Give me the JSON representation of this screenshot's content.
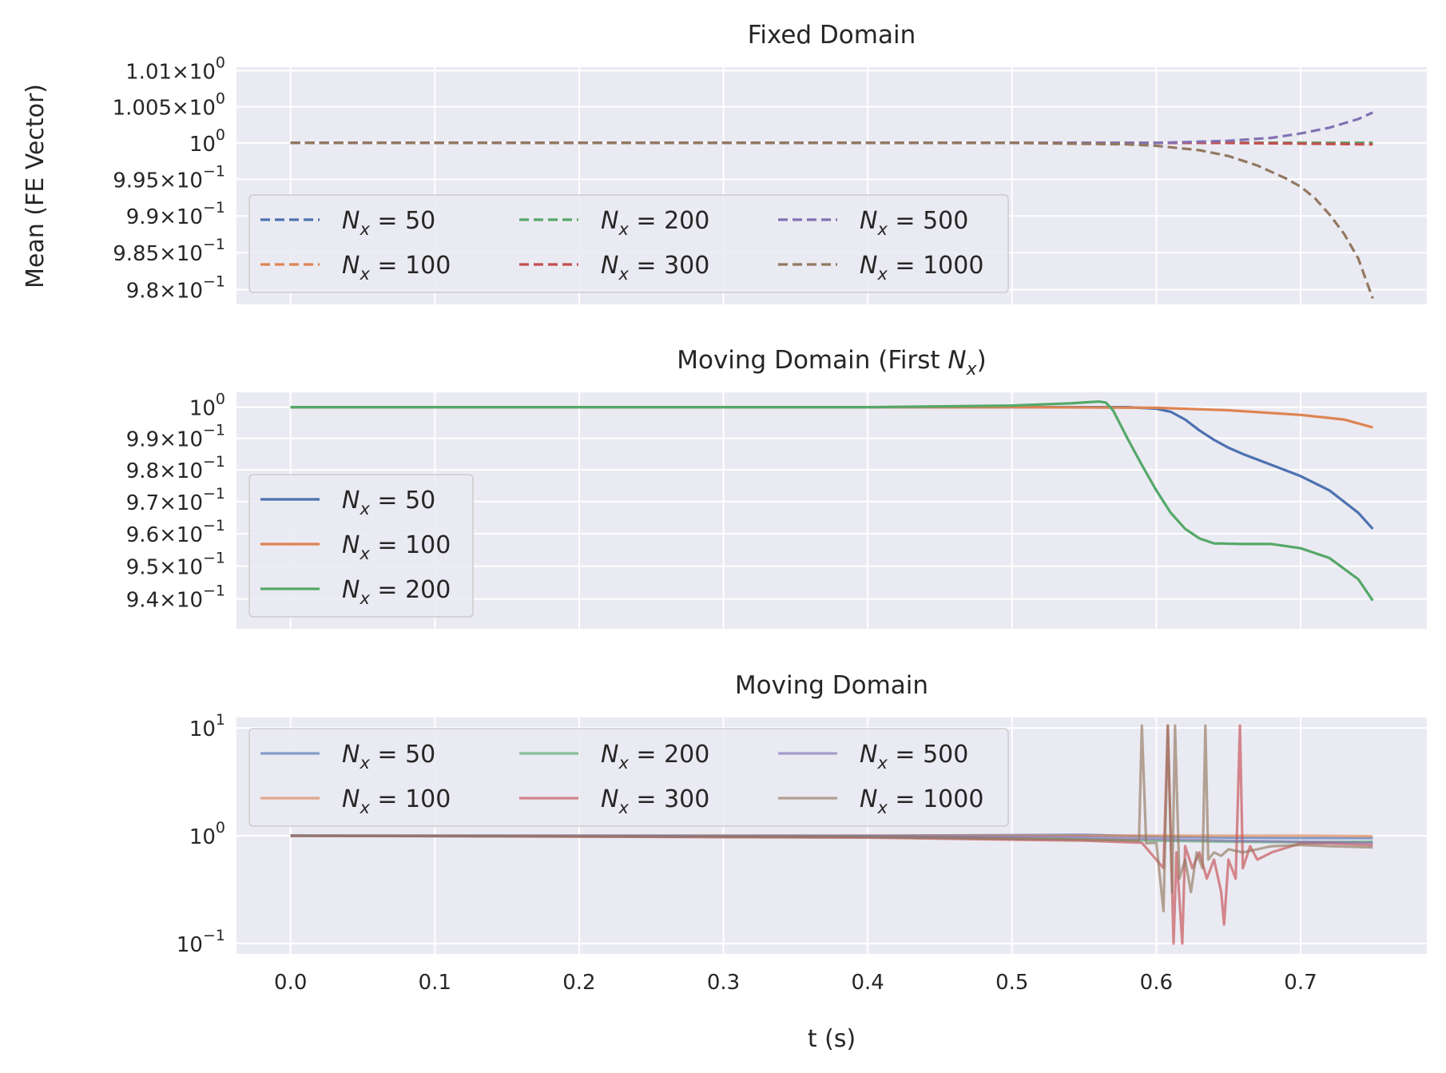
{
  "figure": {
    "ylabel": "Mean (FE Vector)",
    "xlabel": "t (s)"
  },
  "colors": {
    "background_axes": "#EAEAF2",
    "grid": "#FFFFFF",
    "text": "#262626",
    "series": [
      "#4C72B0",
      "#DD8452",
      "#55A868",
      "#C44E52",
      "#8172B3",
      "#937860"
    ]
  },
  "chart_data": [
    {
      "type": "line",
      "title": "Fixed Domain",
      "xlabel": "",
      "ylabel": "Mean (FE Vector)",
      "xlim": [
        -0.0375,
        0.7875
      ],
      "xticks": [
        0.0,
        0.1,
        0.2,
        0.3,
        0.4,
        0.5,
        0.6,
        0.7
      ],
      "xtick_labels_visible": false,
      "ylim": [
        0.978,
        1.0105
      ],
      "yscale": "log",
      "yticks": [
        {
          "value": 1.01,
          "mantissa": "1.01",
          "exp": "0"
        },
        {
          "value": 1.005,
          "mantissa": "1.005",
          "exp": "0"
        },
        {
          "value": 1.0,
          "mantissa": "",
          "exp": "0"
        },
        {
          "value": 0.995,
          "mantissa": "9.95",
          "exp": "−1"
        },
        {
          "value": 0.99,
          "mantissa": "9.9",
          "exp": "−1"
        },
        {
          "value": 0.985,
          "mantissa": "9.85",
          "exp": "−1"
        },
        {
          "value": 0.98,
          "mantissa": "9.8",
          "exp": "−1"
        }
      ],
      "linestyle": "dashed",
      "grid": true,
      "legend": {
        "placement": "lower-left",
        "ncol": 3
      },
      "series": [
        {
          "name": "50",
          "x": [
            0,
            0.5,
            0.6,
            0.65,
            0.7,
            0.75
          ],
          "values": [
            1.0,
            1.0,
            1.0,
            1.0,
            1.0,
            1.0
          ]
        },
        {
          "name": "100",
          "x": [
            0,
            0.5,
            0.6,
            0.65,
            0.7,
            0.75
          ],
          "values": [
            1.0,
            1.0,
            1.0,
            1.0,
            1.0,
            1.0
          ]
        },
        {
          "name": "200",
          "x": [
            0,
            0.5,
            0.6,
            0.65,
            0.7,
            0.75
          ],
          "values": [
            1.0,
            1.0,
            1.0,
            1.0,
            1.0,
            1.0
          ]
        },
        {
          "name": "300",
          "x": [
            0,
            0.5,
            0.6,
            0.65,
            0.7,
            0.75
          ],
          "values": [
            1.0,
            1.0,
            1.0,
            1.0,
            0.9999,
            0.9998
          ]
        },
        {
          "name": "500",
          "x": [
            0,
            0.5,
            0.6,
            0.65,
            0.68,
            0.7,
            0.72,
            0.74,
            0.75
          ],
          "values": [
            1.0,
            1.0,
            1.0,
            1.0003,
            1.0007,
            1.0013,
            1.0021,
            1.0033,
            1.0042
          ]
        },
        {
          "name": "1000",
          "x": [
            0,
            0.5,
            0.58,
            0.6,
            0.63,
            0.65,
            0.67,
            0.69,
            0.7,
            0.71,
            0.72,
            0.73,
            0.74,
            0.75
          ],
          "values": [
            1.0,
            1.0,
            0.9998,
            0.9996,
            0.999,
            0.9982,
            0.9969,
            0.9951,
            0.994,
            0.9924,
            0.9902,
            0.9876,
            0.9842,
            0.9788
          ]
        }
      ]
    },
    {
      "type": "line",
      "title_prefix": "Moving Domain (First ",
      "title_var": "N",
      "title_sub": "x",
      "title_suffix": ")",
      "xlabel": "",
      "ylabel": "",
      "xlim": [
        -0.0375,
        0.7875
      ],
      "xticks": [
        0.0,
        0.1,
        0.2,
        0.3,
        0.4,
        0.5,
        0.6,
        0.7
      ],
      "xtick_labels_visible": false,
      "ylim": [
        0.931,
        1.0048
      ],
      "yscale": "log",
      "yticks": [
        {
          "value": 1.0,
          "mantissa": "",
          "exp": "0"
        },
        {
          "value": 0.99,
          "mantissa": "9.9",
          "exp": "−1"
        },
        {
          "value": 0.98,
          "mantissa": "9.8",
          "exp": "−1"
        },
        {
          "value": 0.97,
          "mantissa": "9.7",
          "exp": "−1"
        },
        {
          "value": 0.96,
          "mantissa": "9.6",
          "exp": "−1"
        },
        {
          "value": 0.95,
          "mantissa": "9.5",
          "exp": "−1"
        },
        {
          "value": 0.94,
          "mantissa": "9.4",
          "exp": "−1"
        }
      ],
      "linestyle": "solid",
      "grid": true,
      "legend": {
        "placement": "lower-left",
        "ncol": 1
      },
      "series": [
        {
          "name": "50",
          "x": [
            0,
            0.4,
            0.55,
            0.58,
            0.6,
            0.61,
            0.62,
            0.63,
            0.64,
            0.65,
            0.66,
            0.68,
            0.7,
            0.72,
            0.74,
            0.75
          ],
          "values": [
            1.0,
            1.0,
            1.0,
            1.0,
            0.9995,
            0.9985,
            0.996,
            0.9925,
            0.9895,
            0.987,
            0.985,
            0.9815,
            0.978,
            0.9735,
            0.9665,
            0.9615
          ]
        },
        {
          "name": "100",
          "x": [
            0,
            0.5,
            0.6,
            0.65,
            0.7,
            0.73,
            0.75
          ],
          "values": [
            1.0,
            1.0,
            0.9998,
            0.999,
            0.9975,
            0.996,
            0.9935
          ]
        },
        {
          "name": "200",
          "x": [
            0,
            0.4,
            0.5,
            0.54,
            0.56,
            0.565,
            0.57,
            0.58,
            0.59,
            0.6,
            0.61,
            0.62,
            0.63,
            0.64,
            0.66,
            0.68,
            0.7,
            0.72,
            0.74,
            0.75
          ],
          "values": [
            1.0,
            1.0,
            1.0005,
            1.0012,
            1.0018,
            1.0015,
            0.999,
            0.99,
            0.9815,
            0.9735,
            0.9665,
            0.9615,
            0.9585,
            0.957,
            0.9568,
            0.9568,
            0.9555,
            0.9525,
            0.946,
            0.9395
          ]
        }
      ]
    },
    {
      "type": "line",
      "title": "Moving Domain",
      "xlabel": "t (s)",
      "ylabel": "",
      "xlim": [
        -0.0375,
        0.7875
      ],
      "xticks": [
        0.0,
        0.1,
        0.2,
        0.3,
        0.4,
        0.5,
        0.6,
        0.7
      ],
      "xtick_labels": [
        "0.0",
        "0.1",
        "0.2",
        "0.3",
        "0.4",
        "0.5",
        "0.6",
        "0.7"
      ],
      "ylim": [
        0.08,
        12.5
      ],
      "yscale": "log",
      "yticks": [
        {
          "value": 10,
          "mantissa": "10",
          "exp": "1",
          "plain": true
        },
        {
          "value": 1,
          "mantissa": "10",
          "exp": "0",
          "plain": true
        },
        {
          "value": 0.1,
          "mantissa": "10",
          "exp": "−1",
          "plain": true
        }
      ],
      "linestyle": "solid",
      "alpha": 0.65,
      "grid": true,
      "legend": {
        "placement": "upper-left",
        "ncol": 3
      },
      "series": [
        {
          "name": "50",
          "x": [
            0,
            0.4,
            0.55,
            0.6,
            0.65,
            0.7,
            0.75
          ],
          "values": [
            1.0,
            1.0,
            1.02,
            0.98,
            0.96,
            0.95,
            0.95
          ]
        },
        {
          "name": "100",
          "x": [
            0,
            0.5,
            0.6,
            0.65,
            0.7,
            0.75
          ],
          "values": [
            1.0,
            1.0,
            1.0,
            1.0,
            1.0,
            0.99
          ]
        },
        {
          "name": "200",
          "x": [
            0,
            0.4,
            0.55,
            0.6,
            0.65,
            0.7,
            0.75
          ],
          "values": [
            1.0,
            0.98,
            0.93,
            0.9,
            0.88,
            0.87,
            0.88
          ]
        },
        {
          "name": "300",
          "x": [
            0,
            0.4,
            0.55,
            0.59,
            0.605,
            0.608,
            0.612,
            0.614,
            0.618,
            0.62,
            0.625,
            0.63,
            0.635,
            0.64,
            0.645,
            0.647,
            0.65,
            0.655,
            0.658,
            0.66,
            0.665,
            0.67,
            0.68,
            0.7,
            0.72,
            0.75
          ],
          "values": [
            1.0,
            0.96,
            0.9,
            0.86,
            0.5,
            10.5,
            0.1,
            0.7,
            0.1,
            0.8,
            0.5,
            0.7,
            0.4,
            0.6,
            0.3,
            0.15,
            0.6,
            0.4,
            10.5,
            0.5,
            0.8,
            0.6,
            0.7,
            0.85,
            0.85,
            0.82
          ]
        },
        {
          "name": "500",
          "x": [
            0,
            0.4,
            0.55,
            0.6,
            0.65,
            0.7,
            0.75
          ],
          "values": [
            1.0,
            0.99,
            0.97,
            0.93,
            0.9,
            0.88,
            0.86
          ]
        },
        {
          "name": "1000",
          "x": [
            0,
            0.4,
            0.55,
            0.588,
            0.59,
            0.593,
            0.6,
            0.605,
            0.608,
            0.611,
            0.613,
            0.616,
            0.62,
            0.624,
            0.628,
            0.632,
            0.634,
            0.636,
            0.64,
            0.645,
            0.65,
            0.66,
            0.68,
            0.7,
            0.72,
            0.75
          ],
          "values": [
            1.0,
            0.97,
            0.92,
            0.9,
            10.5,
            0.85,
            0.86,
            0.2,
            10.5,
            0.3,
            10.5,
            0.4,
            0.6,
            0.3,
            0.7,
            0.5,
            10.5,
            0.6,
            0.7,
            0.65,
            0.75,
            0.7,
            0.8,
            0.82,
            0.8,
            0.78
          ]
        }
      ]
    }
  ]
}
